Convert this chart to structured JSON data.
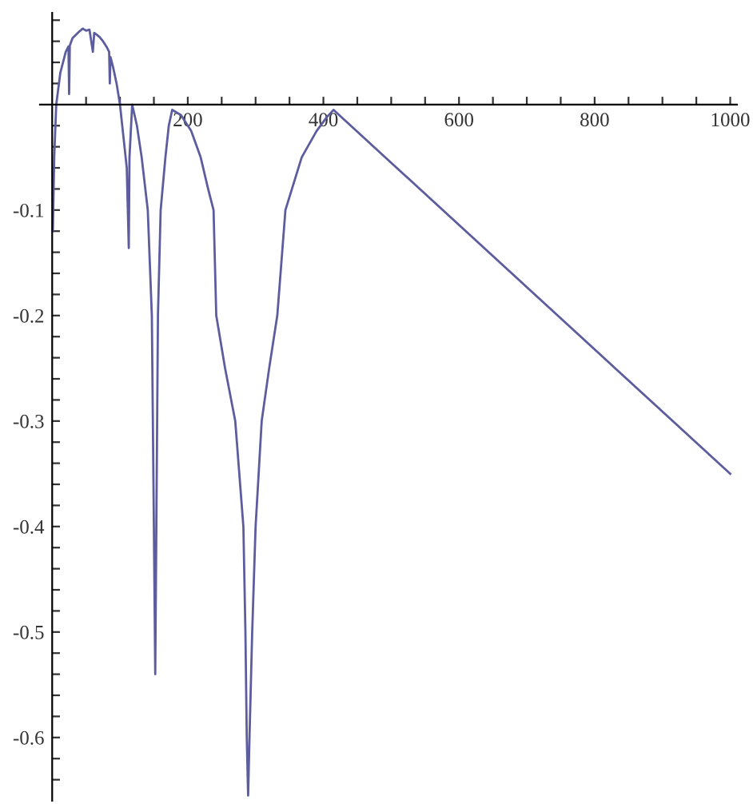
{
  "chart_data": {
    "type": "line",
    "x": [
      1,
      3,
      6,
      12,
      20,
      24,
      25,
      26,
      30,
      38,
      45,
      50,
      55,
      60,
      62,
      66,
      70,
      75,
      80,
      84,
      85,
      86,
      90,
      95,
      100,
      105,
      110,
      113,
      114,
      118,
      125,
      132,
      141,
      147,
      150,
      152,
      156,
      160,
      167,
      172,
      177,
      190,
      205,
      219,
      230,
      238,
      242,
      255,
      270,
      282,
      285,
      287,
      289,
      291,
      295,
      300,
      309,
      320,
      332,
      344,
      368,
      390,
      405,
      415,
      1000
    ],
    "series": [
      {
        "color": "#5c5c9e",
        "values": [
          -0.12,
          -0.05,
          0.0,
          0.03,
          0.05,
          0.055,
          0.01,
          0.056,
          0.063,
          0.068,
          0.072,
          0.07,
          0.071,
          0.05,
          0.068,
          0.066,
          0.064,
          0.06,
          0.055,
          0.05,
          0.02,
          0.045,
          0.035,
          0.02,
          0.0,
          -0.03,
          -0.06,
          -0.136,
          -0.05,
          0.0,
          -0.02,
          -0.05,
          -0.1,
          -0.2,
          -0.4,
          -0.54,
          -0.2,
          -0.1,
          -0.05,
          -0.02,
          -0.005,
          -0.01,
          -0.025,
          -0.05,
          -0.08,
          -0.1,
          -0.2,
          -0.25,
          -0.3,
          -0.4,
          -0.5,
          -0.6,
          -0.655,
          -0.6,
          -0.5,
          -0.4,
          -0.3,
          -0.25,
          -0.2,
          -0.1,
          -0.05,
          -0.025,
          -0.012,
          -0.005,
          -0.35
        ]
      }
    ],
    "xlim": [
      -18,
      1010
    ],
    "ylim": [
      -0.66,
      0.087
    ],
    "xticks": [
      {
        "value": 50,
        "label": null
      },
      {
        "value": 100,
        "label": null
      },
      {
        "value": 150,
        "label": null
      },
      200,
      {
        "value": 250,
        "label": null
      },
      {
        "value": 300,
        "label": null
      },
      {
        "value": 350,
        "label": null
      },
      400,
      {
        "value": 450,
        "label": null
      },
      {
        "value": 500,
        "label": null
      },
      {
        "value": 550,
        "label": null
      },
      600,
      {
        "value": 650,
        "label": null
      },
      {
        "value": 700,
        "label": null
      },
      {
        "value": 750,
        "label": null
      },
      800,
      {
        "value": 850,
        "label": null
      },
      {
        "value": 900,
        "label": null
      },
      {
        "value": 950,
        "label": null
      },
      1000
    ],
    "yticks": [
      {
        "value": 0.08,
        "label": null
      },
      {
        "value": 0.06,
        "label": null
      },
      {
        "value": 0.04,
        "label": null
      },
      {
        "value": 0.02,
        "label": null
      },
      {
        "value": -0.02,
        "label": null
      },
      {
        "value": -0.04,
        "label": null
      },
      {
        "value": -0.06,
        "label": null
      },
      {
        "value": -0.08,
        "label": null
      },
      -0.1,
      {
        "value": -0.12,
        "label": null
      },
      {
        "value": -0.14,
        "label": null
      },
      {
        "value": -0.16,
        "label": null
      },
      {
        "value": -0.18,
        "label": null
      },
      -0.2,
      {
        "value": -0.22,
        "label": null
      },
      {
        "value": -0.24,
        "label": null
      },
      {
        "value": -0.26,
        "label": null
      },
      {
        "value": -0.28,
        "label": null
      },
      -0.3,
      {
        "value": -0.32,
        "label": null
      },
      {
        "value": -0.34,
        "label": null
      },
      {
        "value": -0.36,
        "label": null
      },
      {
        "value": -0.38,
        "label": null
      },
      -0.4,
      {
        "value": -0.42,
        "label": null
      },
      {
        "value": -0.44,
        "label": null
      },
      {
        "value": -0.46,
        "label": null
      },
      {
        "value": -0.48,
        "label": null
      },
      -0.5,
      {
        "value": -0.52,
        "label": null
      },
      {
        "value": -0.54,
        "label": null
      },
      {
        "value": -0.56,
        "label": null
      },
      {
        "value": -0.58,
        "label": null
      },
      -0.6,
      {
        "value": -0.62,
        "label": null
      },
      {
        "value": -0.64,
        "label": null
      }
    ],
    "grid": false,
    "legend": false
  }
}
